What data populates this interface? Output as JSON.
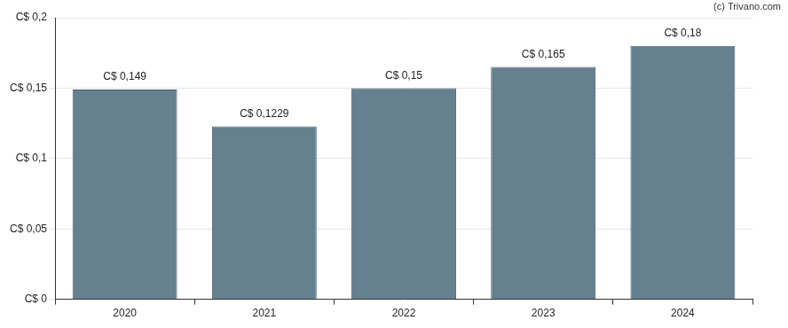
{
  "chart_data": {
    "type": "bar",
    "categories": [
      "2020",
      "2021",
      "2022",
      "2023",
      "2024"
    ],
    "values": [
      0.149,
      0.1229,
      0.15,
      0.165,
      0.18
    ],
    "value_labels": [
      "C$ 0,149",
      "C$ 0,1229",
      "C$ 0,15",
      "C$ 0,165",
      "C$ 0,18"
    ],
    "data_labels": true,
    "color": "#65808f",
    "ylim": [
      0,
      0.2
    ],
    "yticks": [
      {
        "value": 0,
        "label": "C$ 0"
      },
      {
        "value": 0.05,
        "label": "C$ 0,05"
      },
      {
        "value": 0.1,
        "label": "C$ 0,1"
      },
      {
        "value": 0.15,
        "label": "C$ 0,15"
      },
      {
        "value": 0.2,
        "label": "C$ 0,2"
      }
    ],
    "grid": true,
    "annotations": [
      "(c) Trivano.com"
    ]
  }
}
